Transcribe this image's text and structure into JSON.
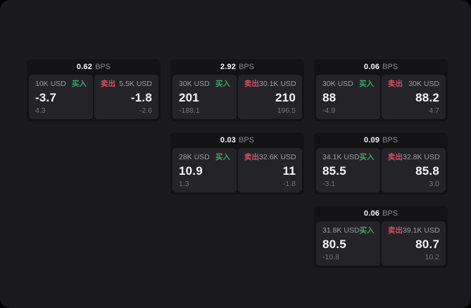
{
  "labels": {
    "buy": "买入",
    "sell": "卖出",
    "bps_unit": "BPS"
  },
  "colors": {
    "surface": "#1a1a1c",
    "card": "#131315",
    "panel": "#242428",
    "buy_accent": "#3fa06c",
    "sell_accent": "#d14f68"
  },
  "cards": [
    {
      "col": 1,
      "row": 1,
      "bps": "0.62",
      "buy": {
        "size": "10K USD",
        "price": "-3.7",
        "delta": "4.3"
      },
      "sell": {
        "size": "5.5K USD",
        "price": "-1.8",
        "delta": "-2.6"
      }
    },
    {
      "col": 2,
      "row": 1,
      "bps": "2.92",
      "buy": {
        "size": "30K USD",
        "price": "201",
        "delta": "-188.1"
      },
      "sell": {
        "size": "30.1K USD",
        "price": "210",
        "delta": "196.5"
      }
    },
    {
      "col": 3,
      "row": 1,
      "bps": "0.06",
      "buy": {
        "size": "30K USD",
        "price": "88",
        "delta": "-4.9"
      },
      "sell": {
        "size": "30K USD",
        "price": "88.2",
        "delta": "4.7"
      }
    },
    {
      "col": 2,
      "row": 2,
      "bps": "0.03",
      "buy": {
        "size": "28K USD",
        "price": "10.9",
        "delta": "1.3"
      },
      "sell": {
        "size": "32.6K USD",
        "price": "11",
        "delta": "-1.8"
      }
    },
    {
      "col": 3,
      "row": 2,
      "bps": "0.09",
      "buy": {
        "size": "34.1K USD",
        "price": "85.5",
        "delta": "-3.1"
      },
      "sell": {
        "size": "32.8K USD",
        "price": "85.8",
        "delta": "3.0"
      }
    },
    {
      "col": 3,
      "row": 3,
      "bps": "0.06",
      "buy": {
        "size": "31.8K USD",
        "price": "80.5",
        "delta": "-10.8"
      },
      "sell": {
        "size": "39.1K USD",
        "price": "80.7",
        "delta": "10.2"
      }
    }
  ]
}
